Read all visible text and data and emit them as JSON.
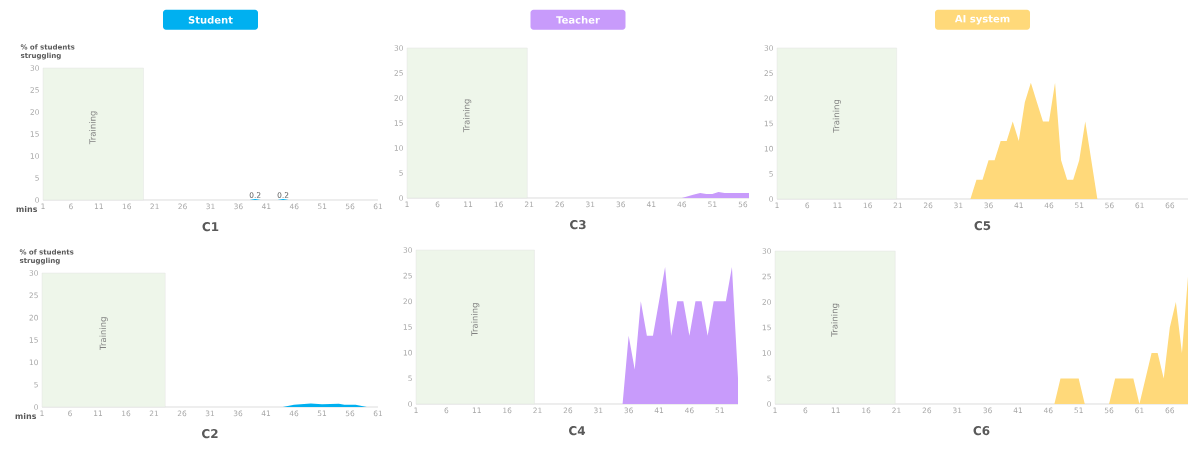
{
  "chart_data": [
    {
      "type": "area",
      "title": "Student",
      "xlabel": "C1",
      "ylabel": "% of students struggling",
      "annotations": [
        "mins"
      ],
      "color": "#00b0f0",
      "x": [
        19,
        38,
        39,
        40,
        43,
        44,
        45,
        48
      ],
      "values": [
        0,
        0,
        0.2,
        0,
        0,
        0.2,
        0,
        0
      ],
      "value_labels": [
        null,
        null,
        "0.2",
        null,
        null,
        "0.2",
        null,
        null
      ],
      "bands": [
        {
          "axis": "x",
          "from": 1,
          "to": 19,
          "label": "Training",
          "color": "#eef6ea"
        }
      ],
      "xlim": [
        1,
        61
      ],
      "ylim": [
        0,
        30
      ],
      "xticks": [
        1,
        6,
        11,
        16,
        21,
        26,
        31,
        36,
        41,
        46,
        51,
        56,
        61
      ],
      "yticks": [
        0,
        5,
        10,
        15,
        20,
        25,
        30
      ]
    },
    {
      "type": "area",
      "title": "Teacher",
      "xlabel": "C3",
      "color": "#c89bfb",
      "x": [
        21,
        46,
        48,
        49,
        50,
        51,
        52,
        53,
        57
      ],
      "values": [
        0,
        0,
        0.7,
        1,
        0.8,
        0.8,
        1.2,
        1,
        1
      ],
      "bands": [
        {
          "axis": "x",
          "from": 1,
          "to": 20.7,
          "label": "Training",
          "color": "#eef6ea"
        }
      ],
      "xlim": [
        1,
        57
      ],
      "ylim": [
        0,
        30
      ],
      "xticks": [
        1,
        6,
        11,
        16,
        21,
        26,
        31,
        36,
        41,
        46,
        51,
        56
      ],
      "yticks": [
        0,
        5,
        10,
        15,
        20,
        25,
        30
      ]
    },
    {
      "type": "area",
      "title": "AI system",
      "xlabel": "C5",
      "color": "#ffd97a",
      "x": [
        21,
        33,
        34,
        35,
        36,
        37,
        38,
        39,
        40,
        41,
        42,
        43,
        44,
        45,
        46,
        47,
        48,
        49,
        50,
        51,
        52,
        53,
        54,
        69
      ],
      "values": [
        0,
        0,
        3.8,
        3.8,
        7.7,
        7.7,
        11.5,
        11.5,
        15.4,
        11.5,
        19.2,
        23.1,
        19.2,
        15.4,
        15.4,
        23.1,
        7.7,
        3.8,
        3.8,
        7.7,
        15.4,
        7.7,
        0,
        0
      ],
      "bands": [
        {
          "axis": "x",
          "from": 1,
          "to": 20.8,
          "label": "Training",
          "color": "#eef6ea"
        }
      ],
      "xlim": [
        1,
        69
      ],
      "ylim": [
        0,
        30
      ],
      "xticks": [
        1,
        6,
        11,
        16,
        21,
        26,
        31,
        36,
        41,
        46,
        51,
        56,
        61,
        66
      ],
      "yticks": [
        0,
        5,
        10,
        15,
        20,
        25,
        30
      ]
    },
    {
      "type": "area",
      "xlabel": "C2",
      "ylabel": "% of students struggling",
      "annotations": [
        "mins"
      ],
      "color": "#00b0f0",
      "x": [
        23,
        44,
        46,
        49,
        51,
        54,
        55,
        57,
        59
      ],
      "values": [
        0,
        0,
        0.5,
        0.8,
        0.6,
        0.7,
        0.5,
        0.5,
        0
      ],
      "bands": [
        {
          "axis": "x",
          "from": 1,
          "to": 23,
          "label": "Training",
          "color": "#eef6ea"
        }
      ],
      "xlim": [
        1,
        61
      ],
      "ylim": [
        0,
        30
      ],
      "xticks": [
        1,
        6,
        11,
        16,
        21,
        26,
        31,
        36,
        41,
        46,
        51,
        56,
        61
      ],
      "yticks": [
        0,
        5,
        10,
        15,
        20,
        25,
        30
      ]
    },
    {
      "type": "area",
      "xlabel": "C4",
      "color": "#c89bfb",
      "x": [
        20.5,
        35,
        36,
        37,
        38,
        39,
        40,
        42,
        43,
        44,
        45,
        46,
        47,
        48,
        49,
        50,
        52,
        53,
        54
      ],
      "values": [
        0,
        0,
        13.3,
        6.7,
        20,
        13.3,
        13.3,
        26.7,
        13.3,
        20,
        20,
        13.3,
        20,
        20,
        13.3,
        20,
        20,
        26.7,
        5
      ],
      "bands": [
        {
          "axis": "x",
          "from": 1,
          "to": 20.5,
          "label": "Training",
          "color": "#eef6ea"
        }
      ],
      "xlim": [
        1,
        54
      ],
      "ylim": [
        0,
        30
      ],
      "xticks": [
        1,
        6,
        11,
        16,
        21,
        26,
        31,
        36,
        41,
        46,
        51
      ],
      "yticks": [
        0,
        5,
        10,
        15,
        20,
        25,
        30
      ]
    },
    {
      "type": "area",
      "xlabel": "C6",
      "color": "#ffd97a",
      "x": [
        20.8,
        47,
        48,
        51,
        52,
        56,
        57,
        60,
        61,
        63,
        64,
        65,
        66,
        67,
        68,
        69
      ],
      "values": [
        0,
        0,
        5,
        5,
        0,
        0,
        5,
        5,
        0,
        10,
        10,
        5,
        15,
        20,
        10,
        25
      ],
      "bands": [
        {
          "axis": "x",
          "from": 1,
          "to": 20.8,
          "label": "Training",
          "color": "#eef6ea"
        }
      ],
      "xlim": [
        1,
        69
      ],
      "ylim": [
        0,
        30
      ],
      "xticks": [
        1,
        6,
        11,
        16,
        21,
        26,
        31,
        36,
        41,
        46,
        51,
        56,
        61,
        66
      ],
      "yticks": [
        0,
        5,
        10,
        15,
        20,
        25,
        30
      ]
    }
  ]
}
